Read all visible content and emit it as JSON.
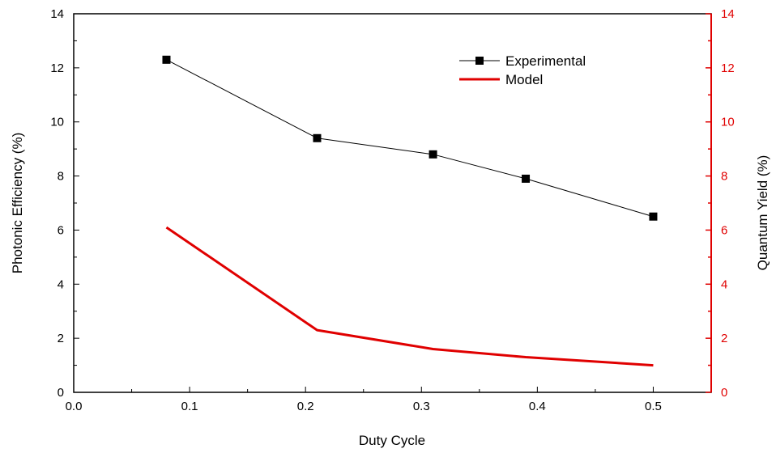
{
  "chart_data": {
    "type": "line",
    "xlabel": "Duty Cycle",
    "ylabel_left": "Photonic Efficiency (%)",
    "ylabel_right": "Quantum Yield (%)",
    "xlim": [
      0.0,
      0.55
    ],
    "ylim": [
      0,
      14
    ],
    "y2lim": [
      0,
      14
    ],
    "x_ticks": [
      "0.0",
      "0.1",
      "0.2",
      "0.3",
      "0.4",
      "0.5"
    ],
    "y_ticks": [
      "0",
      "2",
      "4",
      "6",
      "8",
      "10",
      "12",
      "14"
    ],
    "y2_ticks": [
      "0",
      "2",
      "4",
      "6",
      "8",
      "10",
      "12",
      "14"
    ],
    "grid": false,
    "legend_position": "top-right",
    "series": [
      {
        "name": "Experimental",
        "axis": "left",
        "color": "#000000",
        "marker": "square",
        "x": [
          0.08,
          0.21,
          0.31,
          0.39,
          0.5
        ],
        "values": [
          12.3,
          9.4,
          8.8,
          7.9,
          6.5
        ]
      },
      {
        "name": "Model",
        "axis": "right",
        "color": "#e00000",
        "marker": "none",
        "x": [
          0.08,
          0.21,
          0.31,
          0.39,
          0.5
        ],
        "values": [
          6.1,
          2.3,
          1.6,
          1.3,
          1.0
        ]
      }
    ],
    "right_axis_color": "#e00000"
  }
}
